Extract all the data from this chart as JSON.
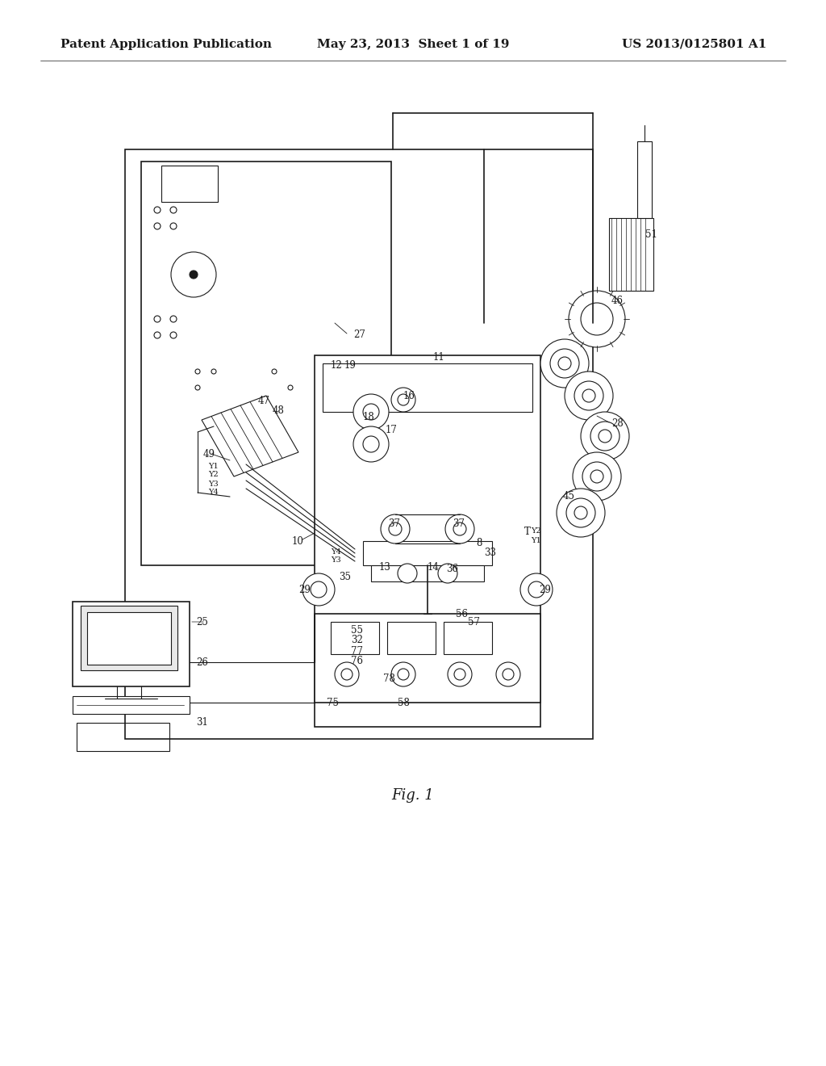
{
  "bg_color": "#ffffff",
  "line_color": "#1a1a1a",
  "header_left": "Patent Application Publication",
  "header_center": "May 23, 2013  Sheet 1 of 19",
  "header_right": "US 2013/0125801 A1",
  "figure_label": "Fig. 1",
  "title_fontsize": 11,
  "label_fontsize": 8.5
}
